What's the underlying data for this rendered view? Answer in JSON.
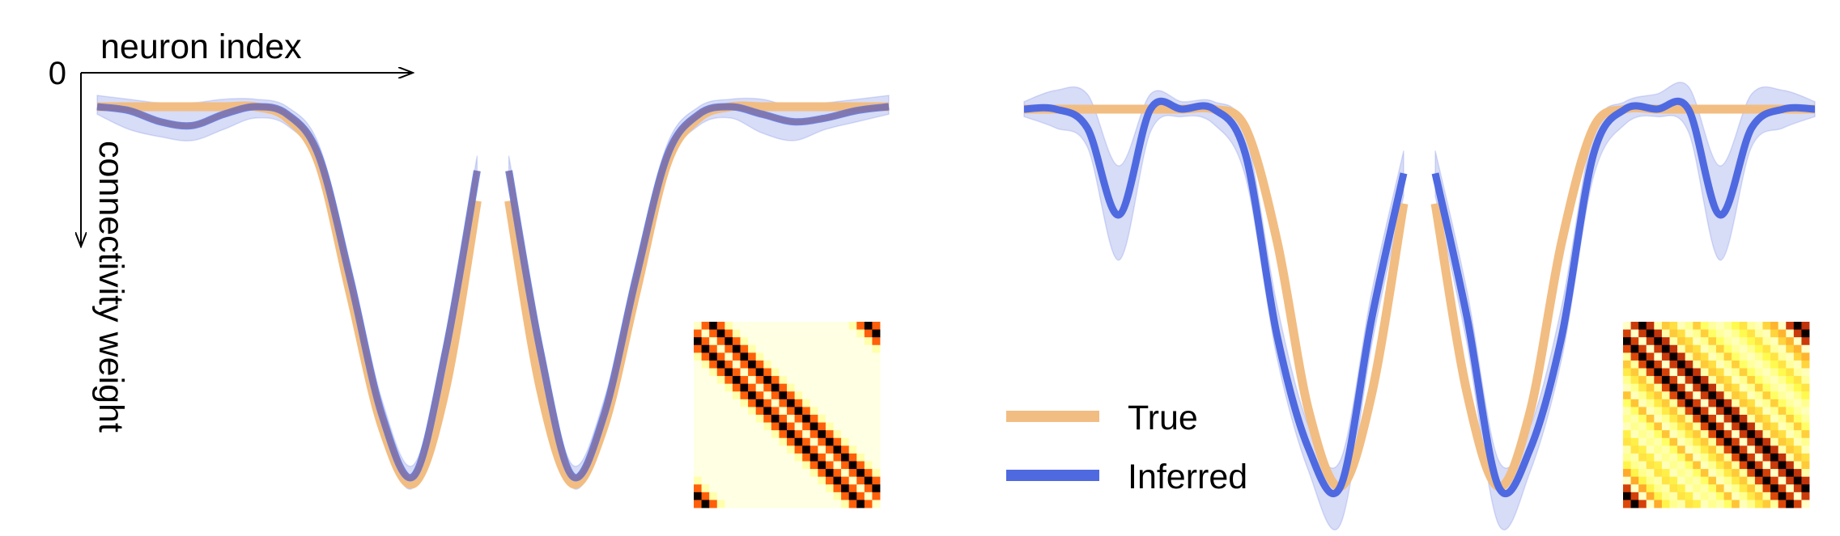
{
  "colors": {
    "true": "#f2bd82",
    "inferred": "#4f6ae0",
    "band": "#b6c0f0",
    "overlap": "#8f6f8a",
    "axis": "#000000"
  },
  "axes_text": {
    "origin": "0",
    "x_label": "neuron index",
    "y_label": "connectivity weight"
  },
  "legend": {
    "placement": "bottom-center",
    "true_label": "True",
    "inferred_label": "Inferred"
  },
  "chart_data": [
    {
      "type": "line",
      "panel": "left",
      "x": [
        0,
        4,
        8,
        12,
        16,
        20,
        24,
        28,
        32,
        36,
        40,
        44,
        48,
        52,
        56,
        60,
        64,
        68,
        72,
        76,
        80,
        84,
        88,
        92,
        96,
        100
      ],
      "series": [
        {
          "name": "True",
          "values": [
            0,
            0,
            0,
            0,
            0,
            0,
            -0.03,
            -0.15,
            -0.5,
            -0.85,
            -1.0,
            -0.75,
            -0.25,
            -0.25,
            -0.75,
            -1.0,
            -0.85,
            -0.5,
            -0.15,
            -0.03,
            0,
            0,
            0,
            0,
            0,
            0
          ]
        },
        {
          "name": "Inferred",
          "values": [
            0,
            -0.01,
            -0.04,
            -0.05,
            -0.02,
            0,
            -0.02,
            -0.13,
            -0.46,
            -0.82,
            -0.98,
            -0.65,
            -0.17,
            -0.17,
            -0.65,
            -0.98,
            -0.82,
            -0.46,
            -0.13,
            -0.02,
            0,
            -0.02,
            -0.04,
            -0.03,
            -0.01,
            0
          ],
          "band_lower": [
            -0.02,
            -0.06,
            -0.08,
            -0.09,
            -0.06,
            -0.03,
            -0.05,
            -0.16,
            -0.5,
            -0.86,
            -1.01,
            -0.69,
            -0.21,
            -0.21,
            -0.69,
            -1.01,
            -0.86,
            -0.5,
            -0.16,
            -0.05,
            -0.03,
            -0.07,
            -0.09,
            -0.06,
            -0.04,
            -0.02
          ],
          "band_upper": [
            0.03,
            0.02,
            0.01,
            0.01,
            0.02,
            0.02,
            0.0,
            -0.1,
            -0.42,
            -0.78,
            -0.95,
            -0.61,
            -0.13,
            -0.13,
            -0.61,
            -0.95,
            -0.78,
            -0.42,
            -0.1,
            0.0,
            0.02,
            0.02,
            0.0,
            0.01,
            0.02,
            0.03
          ]
        }
      ],
      "inset_heatmap": {
        "type": "heatmap",
        "size": 24,
        "pattern": "circulant",
        "colormap": "hot-reversed"
      }
    },
    {
      "type": "line",
      "panel": "right",
      "x": [
        0,
        4,
        8,
        12,
        16,
        20,
        24,
        28,
        32,
        36,
        40,
        44,
        48,
        52,
        56,
        60,
        64,
        68,
        72,
        76,
        80,
        84,
        88,
        92,
        96,
        100
      ],
      "series": [
        {
          "name": "True",
          "values": [
            0,
            0,
            0,
            0,
            0,
            0,
            0,
            -0.05,
            -0.35,
            -0.8,
            -1.0,
            -0.75,
            -0.25,
            -0.25,
            -0.75,
            -1.0,
            -0.8,
            -0.35,
            -0.05,
            0,
            0,
            0,
            0,
            0,
            0,
            0
          ]
        },
        {
          "name": "Inferred",
          "values": [
            0,
            0,
            -0.05,
            -0.28,
            0,
            0,
            0,
            -0.12,
            -0.6,
            -0.9,
            -1.0,
            -0.55,
            -0.17,
            -0.17,
            -0.55,
            -1.0,
            -0.9,
            -0.6,
            -0.12,
            0,
            0,
            0,
            -0.28,
            -0.05,
            0,
            0
          ],
          "band_lower": [
            -0.02,
            -0.05,
            -0.1,
            -0.4,
            -0.06,
            -0.02,
            -0.04,
            -0.18,
            -0.66,
            -0.96,
            -1.1,
            -0.62,
            -0.23,
            -0.23,
            -0.62,
            -1.1,
            -0.96,
            -0.66,
            -0.18,
            -0.04,
            -0.02,
            -0.06,
            -0.4,
            -0.1,
            -0.05,
            -0.02
          ],
          "band_upper": [
            0.02,
            0.05,
            0.04,
            -0.15,
            0.04,
            0.02,
            0.02,
            -0.06,
            -0.52,
            -0.84,
            -0.93,
            -0.48,
            -0.11,
            -0.11,
            -0.48,
            -0.93,
            -0.84,
            -0.52,
            -0.06,
            0.02,
            0.04,
            0.06,
            -0.15,
            0.04,
            0.05,
            0.02
          ]
        }
      ],
      "inset_heatmap": {
        "type": "heatmap",
        "size": 24,
        "pattern": "circulant-multiband",
        "colormap": "hot-reversed"
      }
    }
  ]
}
